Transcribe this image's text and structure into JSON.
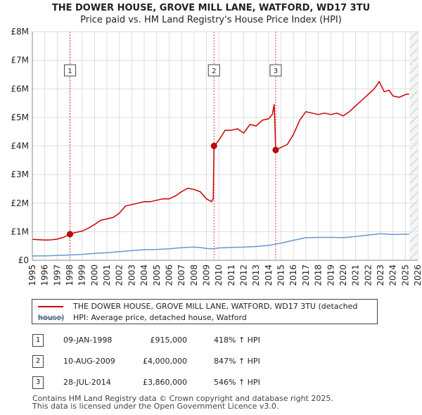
{
  "title": "THE DOWER HOUSE, GROVE MILL LANE, WATFORD, WD17 3TU",
  "subtitle": "Price paid vs. HM Land Registry's House Price Index (HPI)",
  "colors": {
    "property": "#cc0000",
    "hpi": "#6699cc",
    "grid": "#dddddd",
    "marker_line": "#dd4444"
  },
  "chart_data": {
    "type": "line",
    "xlim": [
      1995,
      2026
    ],
    "ylim": [
      0,
      8000000
    ],
    "y_ticks": [
      {
        "value": 0,
        "label": "£0"
      },
      {
        "value": 1000000,
        "label": "£1M"
      },
      {
        "value": 2000000,
        "label": "£2M"
      },
      {
        "value": 3000000,
        "label": "£3M"
      },
      {
        "value": 4000000,
        "label": "£4M"
      },
      {
        "value": 5000000,
        "label": "£5M"
      },
      {
        "value": 6000000,
        "label": "£6M"
      },
      {
        "value": 7000000,
        "label": "£7M"
      },
      {
        "value": 8000000,
        "label": "£8M"
      }
    ],
    "x_ticks": [
      "1995",
      "1996",
      "1997",
      "1998",
      "1999",
      "2000",
      "2001",
      "2002",
      "2003",
      "2004",
      "2005",
      "2006",
      "2007",
      "2008",
      "2009",
      "2010",
      "2011",
      "2012",
      "2013",
      "2014",
      "2015",
      "2016",
      "2017",
      "2018",
      "2019",
      "2020",
      "2021",
      "2022",
      "2023",
      "2024",
      "2025",
      "2026"
    ],
    "series": [
      {
        "name": "THE DOWER HOUSE, GROVE MILL LANE, WATFORD, WD17 3TU (detached house)",
        "x": [
          1995.0,
          1995.5,
          1996.0,
          1996.5,
          1997.0,
          1997.5,
          1998.03,
          1998.5,
          1999.0,
          1999.5,
          2000.0,
          2000.5,
          2001.0,
          2001.5,
          2002.0,
          2002.5,
          2003.0,
          2003.5,
          2004.0,
          2004.5,
          2005.0,
          2005.5,
          2006.0,
          2006.5,
          2007.0,
          2007.5,
          2008.0,
          2008.5,
          2009.0,
          2009.4,
          2009.55,
          2009.61,
          2010.0,
          2010.5,
          2011.0,
          2011.5,
          2012.0,
          2012.5,
          2013.0,
          2013.5,
          2014.0,
          2014.3,
          2014.45,
          2014.5,
          2014.57,
          2015.0,
          2015.5,
          2016.0,
          2016.5,
          2017.0,
          2017.5,
          2018.0,
          2018.5,
          2019.0,
          2019.5,
          2020.0,
          2020.5,
          2021.0,
          2021.5,
          2022.0,
          2022.5,
          2022.9,
          2023.3,
          2023.7,
          2024.0,
          2024.5,
          2025.0,
          2025.3
        ],
        "y": [
          730000,
          720000,
          710000,
          715000,
          740000,
          800000,
          915000,
          975000,
          1020000,
          1120000,
          1250000,
          1400000,
          1450000,
          1500000,
          1650000,
          1900000,
          1950000,
          2000000,
          2050000,
          2050000,
          2100000,
          2150000,
          2150000,
          2250000,
          2400000,
          2520000,
          2480000,
          2400000,
          2150000,
          2050000,
          2150000,
          4000000,
          4200000,
          4550000,
          4550000,
          4600000,
          4450000,
          4750000,
          4700000,
          4900000,
          4950000,
          5100000,
          5450000,
          4900000,
          3860000,
          3950000,
          4050000,
          4400000,
          4900000,
          5200000,
          5150000,
          5100000,
          5150000,
          5100000,
          5150000,
          5050000,
          5200000,
          5400000,
          5600000,
          5800000,
          6000000,
          6250000,
          5900000,
          5950000,
          5750000,
          5700000,
          5800000,
          5820000
        ]
      },
      {
        "name": "HPI: Average price, detached house, Watford",
        "x": [
          1995.0,
          1996.0,
          1997.0,
          1998.0,
          1999.0,
          2000.0,
          2001.0,
          2002.0,
          2003.0,
          2004.0,
          2005.0,
          2006.0,
          2007.0,
          2008.0,
          2008.5,
          2009.0,
          2009.5,
          2010.0,
          2011.0,
          2012.0,
          2013.0,
          2014.0,
          2015.0,
          2016.0,
          2017.0,
          2018.0,
          2019.0,
          2020.0,
          2021.0,
          2022.0,
          2023.0,
          2024.0,
          2025.0,
          2025.3
        ],
        "y": [
          150000,
          155000,
          168000,
          185000,
          205000,
          240000,
          265000,
          300000,
          340000,
          370000,
          380000,
          400000,
          440000,
          460000,
          445000,
          410000,
          400000,
          430000,
          450000,
          460000,
          480000,
          520000,
          600000,
          700000,
          790000,
          800000,
          800000,
          790000,
          830000,
          880000,
          930000,
          900000,
          910000,
          910000
        ]
      }
    ],
    "transactions": [
      {
        "label": "1",
        "x": 1998.03,
        "price": 915000
      },
      {
        "label": "2",
        "x": 2009.61,
        "price": 4000000
      },
      {
        "label": "3",
        "x": 2014.57,
        "price": 3860000
      }
    ]
  },
  "legend": {
    "property": "THE DOWER HOUSE, GROVE MILL LANE, WATFORD, WD17 3TU (detached house)",
    "hpi": "HPI: Average price, detached house, Watford"
  },
  "table": [
    {
      "num": "1",
      "date": "09-JAN-1998",
      "price": "£915,000",
      "hpi": "418% ↑ HPI"
    },
    {
      "num": "2",
      "date": "10-AUG-2009",
      "price": "£4,000,000",
      "hpi": "847% ↑ HPI"
    },
    {
      "num": "3",
      "date": "28-JUL-2014",
      "price": "£3,860,000",
      "hpi": "546% ↑ HPI"
    }
  ],
  "footer": {
    "line1": "Contains HM Land Registry data © Crown copyright and database right 2025.",
    "line2": "This data is licensed under the Open Government Licence v3.0."
  }
}
